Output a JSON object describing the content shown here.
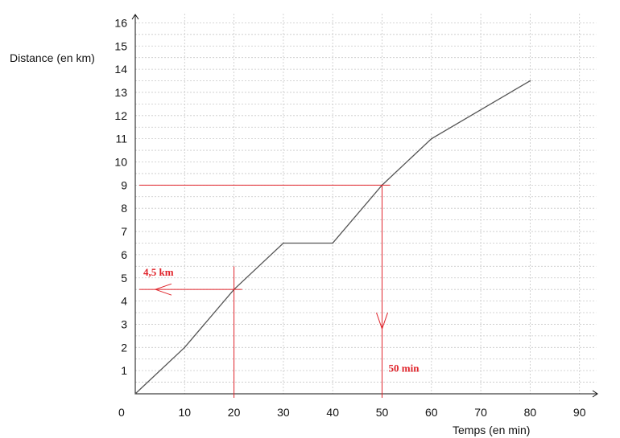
{
  "chart_data": {
    "type": "line",
    "xlabel": "Temps (en min)",
    "ylabel": "Distance (en km)",
    "origin_label": "0",
    "xlim": [
      0,
      95
    ],
    "ylim": [
      0,
      16.5
    ],
    "x_ticks": [
      "10",
      "20",
      "30",
      "40",
      "50",
      "60",
      "70",
      "80",
      "90"
    ],
    "y_ticks": [
      "1",
      "2",
      "3",
      "4",
      "5",
      "6",
      "7",
      "8",
      "9",
      "10",
      "11",
      "12",
      "13",
      "14",
      "15",
      "16"
    ],
    "minor_grid_y": 0.5,
    "grid": true,
    "series": [
      {
        "x": [
          0,
          10,
          20,
          30,
          40,
          50,
          60,
          80
        ],
        "y": [
          0,
          2,
          4.5,
          6.5,
          6.5,
          9,
          11,
          13.5
        ],
        "color": "#555555"
      }
    ],
    "annotations": [
      {
        "label": "4,5 km",
        "from_x": 20,
        "value_y": 4.5,
        "arrow": "to-y-axis"
      },
      {
        "label": "50 min",
        "from_y": 9,
        "value_x": 50,
        "arrow": "to-x-axis"
      }
    ],
    "annotation_color": "#e0242b"
  }
}
